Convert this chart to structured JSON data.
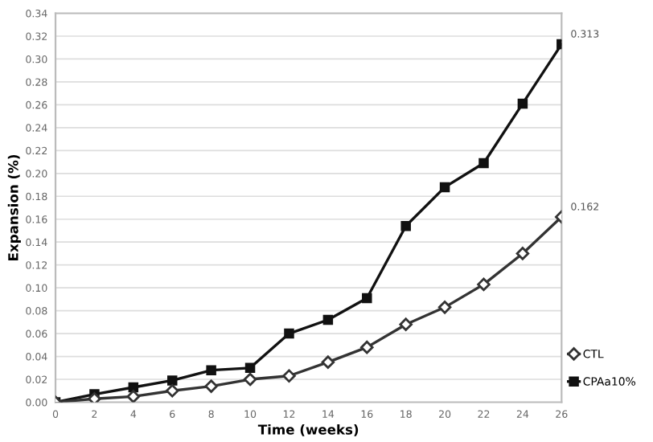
{
  "chart_data": {
    "type": "line",
    "xlabel": "Time (weeks)",
    "ylabel": "Expansion (%)",
    "x": [
      0,
      2,
      4,
      6,
      8,
      10,
      12,
      14,
      16,
      18,
      20,
      22,
      24,
      26
    ],
    "series": [
      {
        "name": "CTL",
        "color": "#333333",
        "marker": "diamond",
        "values": [
          0,
          0.003,
          0.005,
          0.01,
          0.014,
          0.02,
          0.023,
          0.035,
          0.048,
          0.068,
          0.083,
          0.103,
          0.13,
          0.162
        ]
      },
      {
        "name": "CPAa10%",
        "color": "#111111",
        "marker": "square",
        "values": [
          0,
          0.007,
          0.013,
          0.019,
          0.028,
          0.03,
          0.06,
          0.072,
          0.091,
          0.154,
          0.188,
          0.209,
          0.261,
          0.313
        ]
      }
    ],
    "annotations": [
      {
        "text": "0.162",
        "x": 26,
        "y": 0.162
      },
      {
        "text": "0.313",
        "x": 26,
        "y": 0.313
      }
    ],
    "xlim": [
      0,
      26
    ],
    "xticks": [
      0,
      2,
      4,
      6,
      8,
      10,
      12,
      14,
      16,
      18,
      20,
      22,
      24,
      26
    ],
    "ylim": [
      0,
      0.34
    ],
    "yticks": [
      {
        "value": 0,
        "label": "0.00"
      },
      {
        "value": 0.02,
        "label": "0.02"
      },
      {
        "value": 0.04,
        "label": "0.04"
      },
      {
        "value": 0.06,
        "label": "0.06"
      },
      {
        "value": 0.08,
        "label": "0.08"
      },
      {
        "value": 0.1,
        "label": "0.10"
      },
      {
        "value": 0.12,
        "label": "0.12"
      },
      {
        "value": 0.14,
        "label": "0.14"
      },
      {
        "value": 0.16,
        "label": "0.16"
      },
      {
        "value": 0.18,
        "label": "0.18"
      },
      {
        "value": 0.2,
        "label": "0.20"
      },
      {
        "value": 0.22,
        "label": "0.22"
      },
      {
        "value": 0.24,
        "label": "0.24"
      },
      {
        "value": 0.26,
        "label": "0.26"
      },
      {
        "value": 0.28,
        "label": "0.28"
      },
      {
        "value": 0.3,
        "label": "0.30"
      },
      {
        "value": 0.32,
        "label": "0.32"
      },
      {
        "value": 0.34,
        "label": "0.34"
      }
    ],
    "grid": "y",
    "legend": "right"
  }
}
